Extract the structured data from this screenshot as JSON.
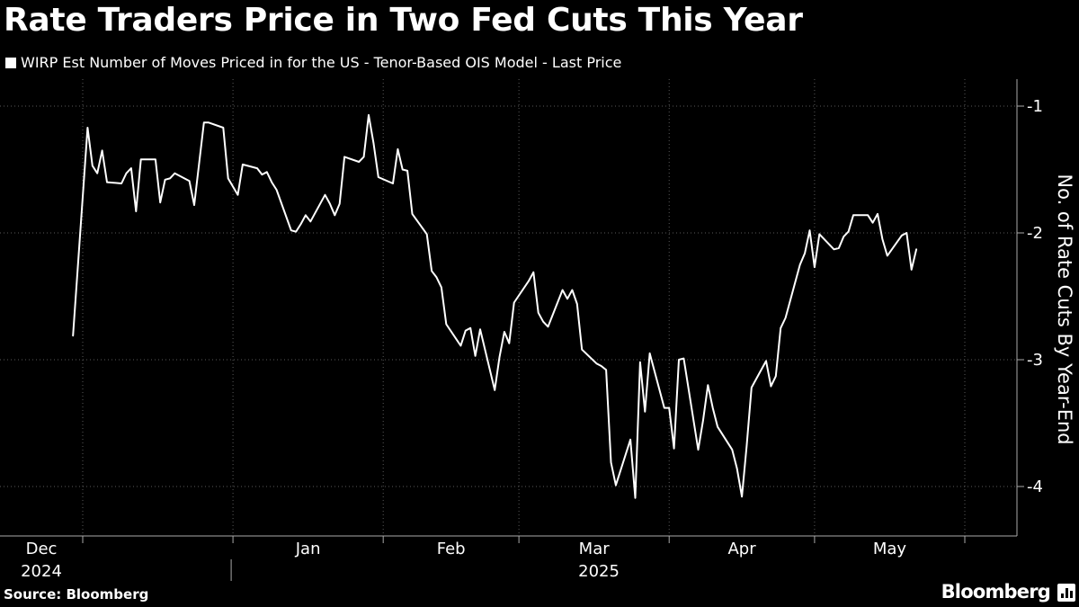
{
  "title": "Rate Traders Price in Two Fed Cuts This Year",
  "source": "Source: Bloomberg",
  "brand": "Bloomberg",
  "colors": {
    "background": "#000000",
    "line": "#ffffff",
    "grid": "#5a5a5a"
  },
  "chart_data": {
    "type": "line",
    "title": "Rate Traders Price in Two Fed Cuts This Year",
    "ylabel": "No. of Rate Cuts By Year-End",
    "ylim": [
      -4.25,
      -0.8
    ],
    "yticks": [
      -1,
      -2,
      -3,
      -4
    ],
    "grid": true,
    "legend_position": "top-left",
    "x_ticks": [
      "Dec",
      "Jan",
      "Feb",
      "Mar",
      "Apr",
      "May"
    ],
    "x_years": [
      "2024",
      "2025"
    ],
    "series": [
      {
        "name": "WIRP Est Number of Moves Priced in for the US - Tenor-Based OIS Model - Last Price",
        "color": "#ffffff",
        "points": [
          [
            "2024-11-29",
            -2.81
          ],
          [
            "2024-12-02",
            -1.17
          ],
          [
            "2024-12-03",
            -1.47
          ],
          [
            "2024-12-04",
            -1.53
          ],
          [
            "2024-12-05",
            -1.35
          ],
          [
            "2024-12-06",
            -1.6
          ],
          [
            "2024-12-09",
            -1.61
          ],
          [
            "2024-12-10",
            -1.53
          ],
          [
            "2024-12-11",
            -1.49
          ],
          [
            "2024-12-12",
            -1.83
          ],
          [
            "2024-12-13",
            -1.42
          ],
          [
            "2024-12-16",
            -1.42
          ],
          [
            "2024-12-17",
            -1.76
          ],
          [
            "2024-12-18",
            -1.58
          ],
          [
            "2024-12-19",
            -1.57
          ],
          [
            "2024-12-20",
            -1.53
          ],
          [
            "2024-12-23",
            -1.59
          ],
          [
            "2024-12-24",
            -1.78
          ],
          [
            "2024-12-26",
            -1.13
          ],
          [
            "2024-12-27",
            -1.13
          ],
          [
            "2024-12-30",
            -1.17
          ],
          [
            "2024-12-31",
            -1.57
          ],
          [
            "2025-01-02",
            -1.7
          ],
          [
            "2025-01-03",
            -1.46
          ],
          [
            "2025-01-06",
            -1.49
          ],
          [
            "2025-01-07",
            -1.54
          ],
          [
            "2025-01-08",
            -1.52
          ],
          [
            "2025-01-09",
            -1.6
          ],
          [
            "2025-01-10",
            -1.66
          ],
          [
            "2025-01-13",
            -1.98
          ],
          [
            "2025-01-14",
            -1.99
          ],
          [
            "2025-01-15",
            -1.93
          ],
          [
            "2025-01-16",
            -1.86
          ],
          [
            "2025-01-17",
            -1.91
          ],
          [
            "2025-01-20",
            -1.7
          ],
          [
            "2025-01-21",
            -1.77
          ],
          [
            "2025-01-22",
            -1.86
          ],
          [
            "2025-01-23",
            -1.77
          ],
          [
            "2025-01-24",
            -1.4
          ],
          [
            "2025-01-27",
            -1.44
          ],
          [
            "2025-01-28",
            -1.4
          ],
          [
            "2025-01-29",
            -1.07
          ],
          [
            "2025-01-30",
            -1.29
          ],
          [
            "2025-01-31",
            -1.56
          ],
          [
            "2025-02-03",
            -1.61
          ],
          [
            "2025-02-04",
            -1.34
          ],
          [
            "2025-02-05",
            -1.5
          ],
          [
            "2025-02-06",
            -1.51
          ],
          [
            "2025-02-07",
            -1.85
          ],
          [
            "2025-02-10",
            -2.01
          ],
          [
            "2025-02-11",
            -2.3
          ],
          [
            "2025-02-12",
            -2.35
          ],
          [
            "2025-02-13",
            -2.43
          ],
          [
            "2025-02-14",
            -2.72
          ],
          [
            "2025-02-17",
            -2.89
          ],
          [
            "2025-02-18",
            -2.77
          ],
          [
            "2025-02-19",
            -2.75
          ],
          [
            "2025-02-20",
            -2.97
          ],
          [
            "2025-02-21",
            -2.76
          ],
          [
            "2025-02-24",
            -3.24
          ],
          [
            "2025-02-25",
            -2.98
          ],
          [
            "2025-02-26",
            -2.78
          ],
          [
            "2025-02-27",
            -2.87
          ],
          [
            "2025-02-28",
            -2.55
          ],
          [
            "2025-03-03",
            -2.38
          ],
          [
            "2025-03-04",
            -2.31
          ],
          [
            "2025-03-05",
            -2.63
          ],
          [
            "2025-03-06",
            -2.7
          ],
          [
            "2025-03-07",
            -2.74
          ],
          [
            "2025-03-10",
            -2.45
          ],
          [
            "2025-03-11",
            -2.52
          ],
          [
            "2025-03-12",
            -2.45
          ],
          [
            "2025-03-13",
            -2.56
          ],
          [
            "2025-03-14",
            -2.92
          ],
          [
            "2025-03-17",
            -3.03
          ],
          [
            "2025-03-18",
            -3.05
          ],
          [
            "2025-03-19",
            -3.08
          ],
          [
            "2025-03-20",
            -3.81
          ],
          [
            "2025-03-21",
            -3.99
          ],
          [
            "2025-03-24",
            -3.63
          ],
          [
            "2025-03-25",
            -4.09
          ],
          [
            "2025-03-26",
            -3.02
          ],
          [
            "2025-03-27",
            -3.41
          ],
          [
            "2025-03-28",
            -2.95
          ],
          [
            "2025-03-31",
            -3.38
          ],
          [
            "2025-04-01",
            -3.38
          ],
          [
            "2025-04-02",
            -3.7
          ],
          [
            "2025-04-03",
            -3.0
          ],
          [
            "2025-04-04",
            -2.99
          ],
          [
            "2025-04-07",
            -3.71
          ],
          [
            "2025-04-08",
            -3.48
          ],
          [
            "2025-04-09",
            -3.2
          ],
          [
            "2025-04-10",
            -3.38
          ],
          [
            "2025-04-11",
            -3.53
          ],
          [
            "2025-04-14",
            -3.71
          ],
          [
            "2025-04-15",
            -3.86
          ],
          [
            "2025-04-16",
            -4.08
          ],
          [
            "2025-04-17",
            -3.68
          ],
          [
            "2025-04-18",
            -3.22
          ],
          [
            "2025-04-21",
            -3.01
          ],
          [
            "2025-04-22",
            -3.21
          ],
          [
            "2025-04-23",
            -3.13
          ],
          [
            "2025-04-24",
            -2.75
          ],
          [
            "2025-04-25",
            -2.67
          ],
          [
            "2025-04-28",
            -2.25
          ],
          [
            "2025-04-29",
            -2.16
          ],
          [
            "2025-04-30",
            -1.98
          ],
          [
            "2025-05-01",
            -2.27
          ],
          [
            "2025-05-02",
            -2.01
          ],
          [
            "2025-05-05",
            -2.13
          ],
          [
            "2025-05-06",
            -2.12
          ],
          [
            "2025-05-07",
            -2.03
          ],
          [
            "2025-05-08",
            -1.99
          ],
          [
            "2025-05-09",
            -1.86
          ],
          [
            "2025-05-12",
            -1.86
          ],
          [
            "2025-05-13",
            -1.92
          ],
          [
            "2025-05-14",
            -1.85
          ],
          [
            "2025-05-15",
            -2.05
          ],
          [
            "2025-05-16",
            -2.18
          ],
          [
            "2025-05-19",
            -2.02
          ],
          [
            "2025-05-20",
            -2.0
          ],
          [
            "2025-05-21",
            -2.29
          ],
          [
            "2025-05-22",
            -2.13
          ]
        ]
      }
    ]
  }
}
